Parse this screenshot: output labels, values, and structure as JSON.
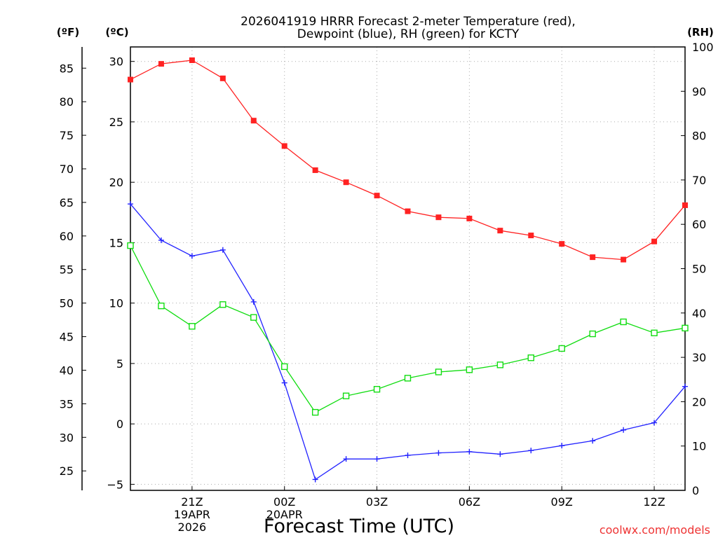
{
  "title_line1": "2026041919 HRRR Forecast 2-meter Temperature (red),",
  "title_line2": "Dewpoint (blue), RH (green) for KCTY",
  "unit_f": "(ºF)",
  "unit_c": "(ºC)",
  "unit_rh": "(RH)",
  "xlabel": "Forecast Time (UTC)",
  "watermark": "coolwx.com/models",
  "colors": {
    "temp": "#ff2222",
    "dewpoint": "#2222ff",
    "rh": "#11dd11",
    "watermark": "#ee3333",
    "grid": "#aaaaaa"
  },
  "chart_data": {
    "type": "line",
    "title": "2026041919 HRRR Forecast 2-meter Temperature (red), Dewpoint (blue), RH (green) for KCTY",
    "xlabel": "Forecast Time (UTC)",
    "x_hours": [
      0,
      1,
      2,
      3,
      4,
      5,
      6,
      7,
      8,
      9,
      10,
      11,
      12,
      13,
      14,
      15,
      16,
      17,
      18
    ],
    "xlim": [
      0,
      18
    ],
    "x_ticks": [
      {
        "hour": 2,
        "lines": [
          "21Z",
          "19APR",
          "2026"
        ]
      },
      {
        "hour": 5,
        "lines": [
          "00Z",
          "20APR"
        ]
      },
      {
        "hour": 8,
        "lines": [
          "03Z"
        ]
      },
      {
        "hour": 11,
        "lines": [
          "06Z"
        ]
      },
      {
        "hour": 14,
        "lines": [
          "09Z"
        ]
      },
      {
        "hour": 17,
        "lines": [
          "12Z"
        ]
      }
    ],
    "ylim_c": [
      -5.5,
      31.2
    ],
    "y_ticks_c": [
      -5,
      0,
      5,
      10,
      15,
      20,
      25,
      30
    ],
    "y_tick_labels_c": [
      "−5",
      "0",
      "5",
      "10",
      "15",
      "20",
      "25",
      "30"
    ],
    "y_ticks_f": [
      25,
      30,
      35,
      40,
      45,
      50,
      55,
      60,
      65,
      70,
      75,
      80,
      85
    ],
    "ylim_rh": [
      0,
      100
    ],
    "y_ticks_rh": [
      0,
      10,
      20,
      30,
      40,
      50,
      60,
      70,
      80,
      90,
      100
    ],
    "series": [
      {
        "name": "Temperature",
        "unit": "C",
        "axis": "left",
        "values": [
          28.5,
          29.8,
          30.1,
          28.6,
          25.1,
          23.0,
          21.0,
          20.0,
          18.9,
          17.6,
          17.1,
          17.0,
          16.0,
          15.6,
          14.9,
          13.8,
          13.6,
          15.1,
          18.1
        ]
      },
      {
        "name": "Dewpoint",
        "unit": "C",
        "axis": "left",
        "values": [
          18.2,
          15.2,
          13.9,
          14.4,
          10.1,
          3.4,
          -4.6,
          -2.9,
          -2.9,
          -2.6,
          -2.4,
          -2.3,
          -2.5,
          -2.2,
          -1.8,
          -1.4,
          -0.5,
          0.1,
          3.1
        ]
      },
      {
        "name": "RH",
        "unit": "%",
        "axis": "right",
        "values": [
          55.2,
          41.6,
          37.0,
          41.9,
          39.0,
          27.9,
          17.6,
          21.3,
          22.8,
          25.3,
          26.7,
          27.2,
          28.3,
          29.9,
          32.0,
          35.3,
          38.0,
          35.5,
          36.6
        ]
      }
    ]
  }
}
